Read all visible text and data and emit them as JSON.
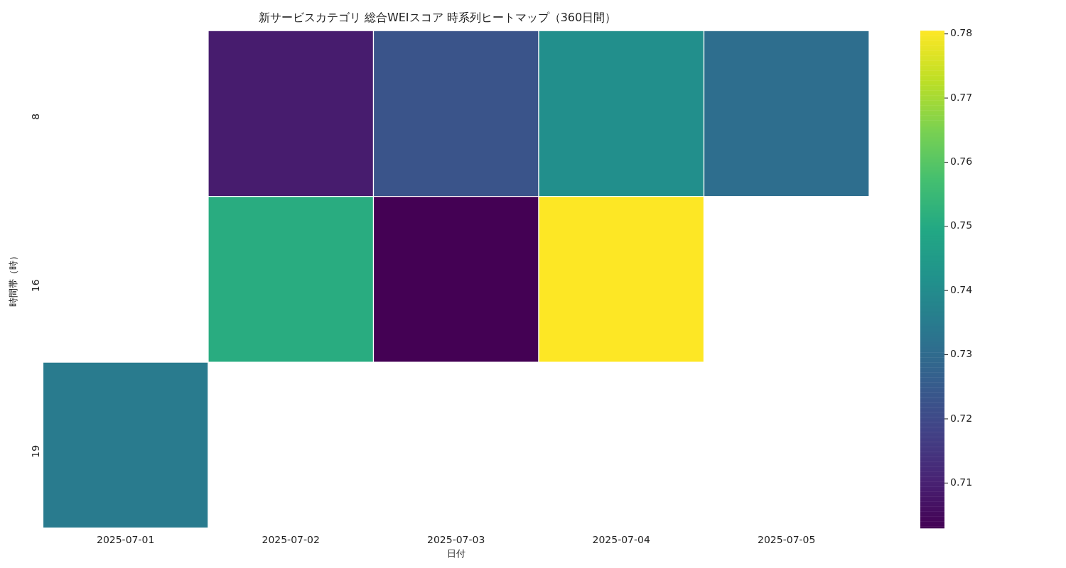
{
  "chart_data": {
    "type": "heatmap",
    "title": "新サービスカテゴリ 総合WEIスコア 時系列ヒートマップ（360日間）",
    "xlabel": "日付",
    "ylabel": "時間帯（時）",
    "categories": [
      "2025-07-01",
      "2025-07-02",
      "2025-07-03",
      "2025-07-04",
      "2025-07-05"
    ],
    "y_categories": [
      "8",
      "16",
      "19"
    ],
    "cells": [
      [
        null,
        0.709,
        0.723,
        0.741,
        0.731
      ],
      [
        null,
        0.751,
        0.703,
        0.7805,
        null
      ],
      [
        0.735,
        null,
        null,
        null,
        null
      ]
    ],
    "clim": [
      0.703,
      0.7805
    ],
    "cticks": [
      0.71,
      0.72,
      0.73,
      0.74,
      0.75,
      0.76,
      0.77,
      0.78
    ]
  }
}
